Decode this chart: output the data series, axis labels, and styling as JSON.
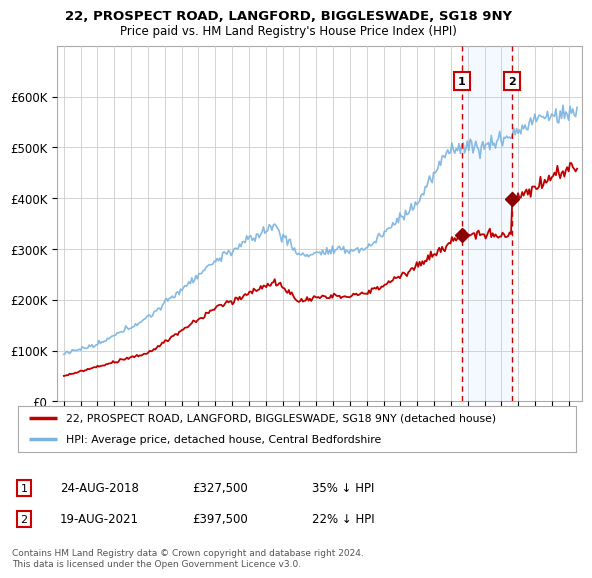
{
  "title": "22, PROSPECT ROAD, LANGFORD, BIGGLESWADE, SG18 9NY",
  "subtitle": "Price paid vs. HM Land Registry's House Price Index (HPI)",
  "background_color": "#ffffff",
  "plot_bg_color": "#ffffff",
  "grid_color": "#cccccc",
  "ylim": [
    0,
    700000
  ],
  "yticks": [
    0,
    100000,
    200000,
    300000,
    400000,
    500000,
    600000
  ],
  "ytick_labels": [
    "£0",
    "£100K",
    "£200K",
    "£300K",
    "£400K",
    "£500K",
    "£600K"
  ],
  "xlim_left": 1994.6,
  "xlim_right": 2025.8,
  "sale1_date": 2018.65,
  "sale1_price": 327500,
  "sale1_label": "1",
  "sale2_date": 2021.63,
  "sale2_price": 397500,
  "sale2_label": "2",
  "hpi_color": "#7ab3e0",
  "price_color": "#c00000",
  "sale_dot_color": "#8b0000",
  "vline_color": "#cc0000",
  "vline_style": "--",
  "fill_color": "#ddeeff",
  "fill_alpha": 0.35,
  "legend_border_color": "#aaaaaa",
  "footer_text": "Contains HM Land Registry data © Crown copyright and database right 2024.\nThis data is licensed under the Open Government Licence v3.0.",
  "hpi_line_label": "HPI: Average price, detached house, Central Bedfordshire",
  "price_line_label": "22, PROSPECT ROAD, LANGFORD, BIGGLESWADE, SG18 9NY (detached house)",
  "ann1_num": "1",
  "ann1_date": "24-AUG-2018",
  "ann1_price": "£327,500",
  "ann1_pct": "35% ↓ HPI",
  "ann2_num": "2",
  "ann2_date": "19-AUG-2021",
  "ann2_price": "£397,500",
  "ann2_pct": "22% ↓ HPI"
}
